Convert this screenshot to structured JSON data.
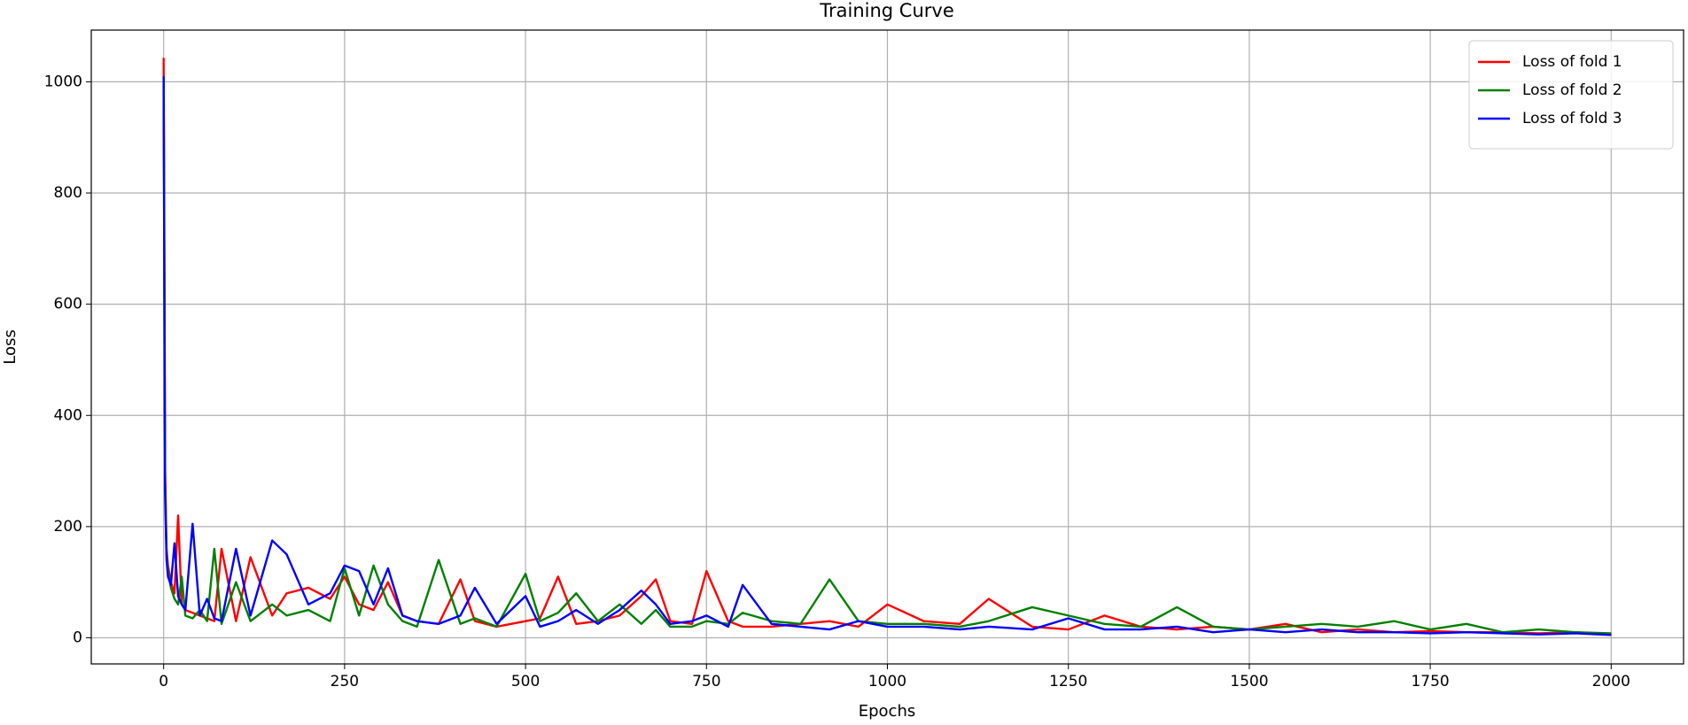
{
  "chart_data": {
    "type": "line",
    "title": "Training Curve",
    "x_label": "Epochs",
    "y_label": "Loss",
    "x": [
      0,
      1,
      2,
      4,
      6,
      10,
      15,
      20,
      25,
      30,
      40,
      50,
      60,
      70,
      80,
      100,
      120,
      150,
      170,
      200,
      230,
      250,
      270,
      290,
      310,
      330,
      350,
      380,
      410,
      430,
      460,
      500,
      520,
      545,
      570,
      600,
      630,
      660,
      680,
      700,
      730,
      750,
      780,
      800,
      840,
      880,
      920,
      960,
      1000,
      1050,
      1100,
      1140,
      1200,
      1250,
      1300,
      1350,
      1400,
      1450,
      1500,
      1550,
      1600,
      1650,
      1700,
      1750,
      1800,
      1850,
      1900,
      1950,
      2000
    ],
    "series": [
      {
        "name": "Loss of fold 1",
        "color": "#ff0000",
        "values": [
          1043,
          700,
          300,
          160,
          130,
          100,
          80,
          220,
          60,
          50,
          45,
          40,
          35,
          30,
          160,
          30,
          145,
          40,
          80,
          90,
          70,
          110,
          60,
          50,
          100,
          40,
          30,
          25,
          105,
          30,
          20,
          30,
          35,
          110,
          25,
          30,
          40,
          75,
          105,
          30,
          25,
          120,
          30,
          20,
          20,
          25,
          30,
          20,
          60,
          30,
          25,
          70,
          20,
          15,
          40,
          20,
          15,
          20,
          15,
          25,
          10,
          15,
          10,
          12,
          10,
          10,
          8,
          10,
          6
        ]
      },
      {
        "name": "Loss of fold 2",
        "color": "#008000",
        "values": [
          1000,
          650,
          280,
          150,
          120,
          90,
          70,
          60,
          110,
          40,
          35,
          50,
          30,
          160,
          25,
          100,
          30,
          60,
          40,
          50,
          30,
          125,
          40,
          130,
          60,
          30,
          20,
          140,
          25,
          35,
          20,
          115,
          30,
          45,
          80,
          30,
          60,
          25,
          50,
          20,
          20,
          30,
          25,
          45,
          30,
          25,
          105,
          30,
          25,
          25,
          20,
          30,
          55,
          40,
          25,
          20,
          55,
          20,
          15,
          20,
          25,
          20,
          30,
          15,
          25,
          10,
          15,
          10,
          8
        ]
      },
      {
        "name": "Loss of fold 3",
        "color": "#0000ff",
        "values": [
          1010,
          600,
          260,
          140,
          110,
          95,
          170,
          75,
          60,
          50,
          205,
          40,
          70,
          35,
          30,
          160,
          40,
          175,
          150,
          60,
          80,
          130,
          120,
          60,
          125,
          40,
          30,
          25,
          40,
          90,
          25,
          75,
          20,
          30,
          50,
          25,
          50,
          85,
          60,
          25,
          30,
          40,
          20,
          95,
          25,
          20,
          15,
          30,
          20,
          20,
          15,
          20,
          15,
          35,
          15,
          15,
          20,
          10,
          15,
          10,
          15,
          10,
          10,
          8,
          10,
          8,
          6,
          8,
          5
        ]
      }
    ],
    "xlim": [
      -100,
      2100
    ],
    "ylim": [
      -47,
      1093
    ],
    "xticks": [
      0,
      250,
      500,
      750,
      1000,
      1250,
      1500,
      1750,
      2000
    ],
    "yticks": [
      0,
      200,
      400,
      600,
      800,
      1000
    ],
    "grid": true,
    "legend": "upper right"
  }
}
